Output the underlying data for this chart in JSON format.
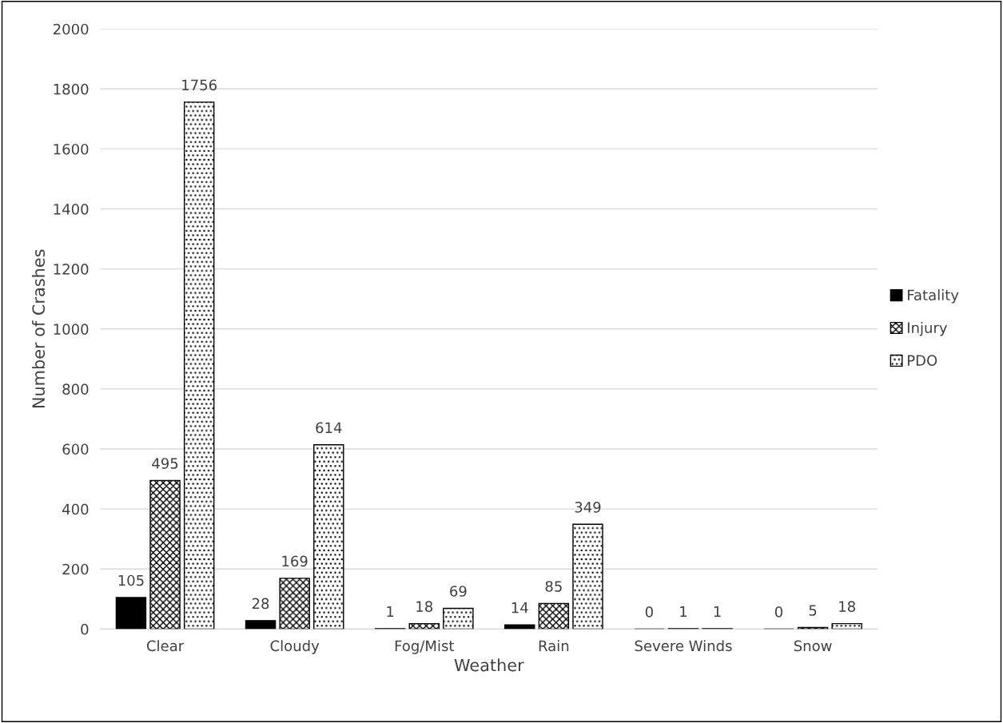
{
  "chart_data": {
    "type": "bar",
    "xlabel": "Weather",
    "ylabel": "Number of Crashes",
    "categories": [
      "Clear",
      "Cloudy",
      "Fog/Mist",
      "Rain",
      "Severe Winds",
      "Snow"
    ],
    "series": [
      {
        "name": "Fatality",
        "color": "#000000",
        "values": [
          105,
          28,
          1,
          14,
          0,
          0
        ]
      },
      {
        "name": "Injury",
        "color": "#000000",
        "values": [
          495,
          169,
          18,
          85,
          1,
          5
        ]
      },
      {
        "name": "PDO",
        "color": "#000000",
        "values": [
          1756,
          614,
          69,
          349,
          1,
          18
        ]
      }
    ],
    "ylim": [
      0,
      2000
    ],
    "yticks": [
      0,
      200,
      400,
      600,
      800,
      1000,
      1200,
      1400,
      1600,
      1800,
      2000
    ],
    "grid": "y",
    "legend": "right",
    "data_labels": true
  }
}
